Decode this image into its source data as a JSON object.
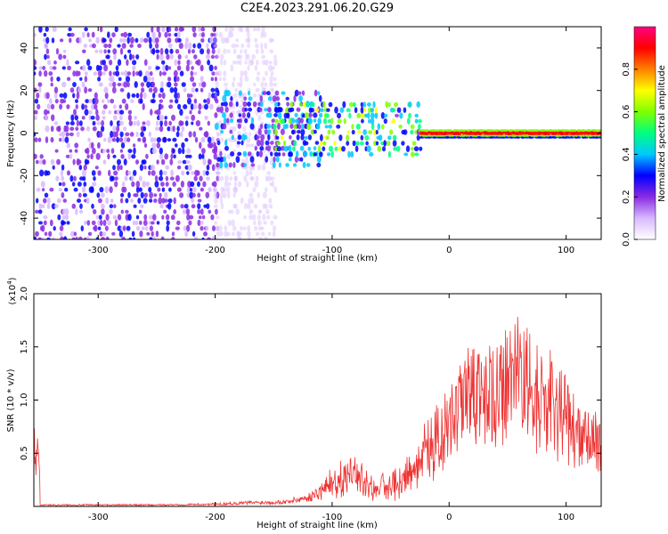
{
  "title": "C2E4.2023.291.06.20.G29",
  "chart_data": [
    {
      "type": "heatmap",
      "xlabel": "Height of straight line (km)",
      "ylabel": "Frequency (Hz)",
      "xlim": [
        -355,
        130
      ],
      "ylim": [
        -50,
        50
      ],
      "xticks": [
        "-300",
        "-200",
        "-100",
        "0",
        "100"
      ],
      "xtick_values": [
        -300,
        -200,
        -100,
        0,
        100
      ],
      "yticks": [
        "-40",
        "-20",
        "0",
        "20",
        "40"
      ],
      "ytick_values": [
        -40,
        -20,
        0,
        20,
        40
      ],
      "colorbar": {
        "label": "Normalized spectral amplitude",
        "range": [
          0,
          1
        ],
        "ticks": [
          "0.0",
          "0.2",
          "0.4",
          "0.6",
          "0.8"
        ],
        "tick_values": [
          0.0,
          0.2,
          0.4,
          0.6,
          0.8
        ],
        "colors": [
          "#ffffff",
          "#d8b8ff",
          "#8a2be2",
          "#0000ff",
          "#00c8ff",
          "#00ff80",
          "#80ff00",
          "#ffff00",
          "#ff8000",
          "#ff0000",
          "#ff0080"
        ]
      },
      "regions": [
        {
          "x_range": [
            -355,
            -200
          ],
          "freq_range": [
            -50,
            50
          ],
          "level": 0.2
        },
        {
          "x_range": [
            -200,
            -150
          ],
          "freq_range": [
            -50,
            50
          ],
          "level": 0.08
        },
        {
          "x_range": [
            -200,
            -110
          ],
          "freq_range": [
            -15,
            20
          ],
          "level": 0.3
        },
        {
          "x_range": [
            -150,
            -25
          ],
          "freq_range": [
            -10,
            15
          ],
          "level": 0.45
        },
        {
          "x_range": [
            -25,
            130
          ],
          "freq_range": [
            -2,
            2
          ],
          "level": 0.9
        }
      ]
    },
    {
      "type": "line",
      "xlabel": "Height of straight line (km)",
      "ylabel": "SNR (10 * v/v)",
      "y_scale_label": "(x10",
      "y_scale_exp": "4",
      "y_scale_close": ")",
      "xlim": [
        -355,
        130
      ],
      "ylim": [
        0,
        2.0
      ],
      "xticks": [
        "-300",
        "-200",
        "-100",
        "0",
        "100"
      ],
      "xtick_values": [
        -300,
        -200,
        -100,
        0,
        100
      ],
      "yticks": [
        "0.5",
        "1.0",
        "1.5",
        "2.0"
      ],
      "ytick_values": [
        0.5,
        1.0,
        1.5,
        2.0
      ],
      "color": "#ee3333",
      "series": [
        {
          "x": [
            -350,
            -300,
            -250,
            -200,
            -170,
            -140,
            -120,
            -110,
            -100,
            -90,
            -80,
            -70,
            -60,
            -50,
            -40,
            -30,
            -20,
            -10,
            0,
            10,
            20,
            30,
            40,
            50,
            60,
            70,
            80,
            90,
            100,
            110,
            120,
            130
          ],
          "y": [
            0.02,
            0.02,
            0.02,
            0.03,
            0.05,
            0.06,
            0.12,
            0.2,
            0.3,
            0.4,
            0.48,
            0.3,
            0.25,
            0.3,
            0.4,
            0.55,
            0.75,
            0.85,
            1.05,
            1.3,
            1.4,
            1.55,
            1.5,
            1.55,
            1.8,
            1.5,
            1.4,
            1.35,
            1.2,
            0.9,
            1.0,
            0.75
          ]
        }
      ]
    }
  ]
}
